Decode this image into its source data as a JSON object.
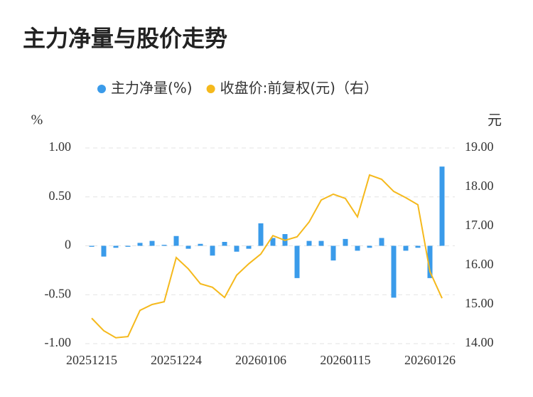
{
  "chart_data": {
    "type": "bar-line",
    "title": "主力净量与股价走势",
    "y_unit": "%",
    "y2_unit": "元",
    "categories": [
      "20251215",
      null,
      null,
      null,
      null,
      null,
      null,
      "20251224",
      null,
      null,
      null,
      null,
      null,
      null,
      "20260106",
      null,
      null,
      null,
      null,
      null,
      null,
      "20260115",
      null,
      null,
      null,
      null,
      null,
      null,
      "20260126",
      null
    ],
    "series": [
      {
        "name": "主力净量(%)",
        "type": "bar",
        "color": "#3a9bea",
        "values": [
          -0.01,
          -0.11,
          -0.02,
          -0.01,
          0.03,
          0.05,
          0.01,
          0.1,
          -0.03,
          0.02,
          -0.1,
          0.04,
          -0.06,
          -0.03,
          0.23,
          0.08,
          0.12,
          -0.33,
          0.05,
          0.05,
          -0.15,
          0.07,
          -0.05,
          -0.02,
          0.08,
          -0.53,
          -0.05,
          -0.02,
          -0.33,
          0.81
        ]
      },
      {
        "name": "收盘价:前复权(元)（右）",
        "type": "line",
        "axis": "y2",
        "color": "#f5b91c",
        "values": [
          14.65,
          14.33,
          14.15,
          14.18,
          14.85,
          15.0,
          15.07,
          16.2,
          15.91,
          15.53,
          15.44,
          15.18,
          15.75,
          16.04,
          16.29,
          16.76,
          16.64,
          16.73,
          17.11,
          17.67,
          17.82,
          17.71,
          17.24,
          18.31,
          18.2,
          17.89,
          17.73,
          17.55,
          15.84,
          15.16
        ]
      }
    ],
    "ylim": [
      -1,
      1
    ],
    "yticks": [
      {
        "value": 1,
        "label": "1.00"
      },
      {
        "value": 0.5,
        "label": "0.50"
      },
      0,
      {
        "value": -0.5,
        "label": "-0.50"
      },
      {
        "value": -1,
        "label": "-1.00"
      }
    ],
    "y2lim": [
      14,
      19
    ],
    "y2ticks": [
      {
        "value": 19,
        "label": "19.00"
      },
      {
        "value": 18,
        "label": "18.00"
      },
      {
        "value": 17,
        "label": "17.00"
      },
      {
        "value": 16,
        "label": "16.00"
      },
      {
        "value": 15,
        "label": "15.00"
      },
      {
        "value": 14,
        "label": "14.00"
      }
    ],
    "grid": true
  }
}
